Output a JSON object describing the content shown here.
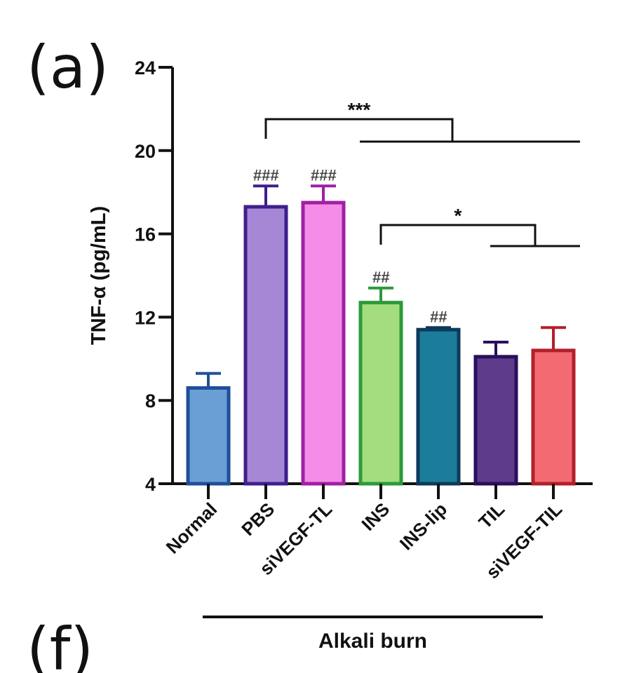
{
  "panel_labels": {
    "top": "(a)",
    "bottom": "(f)"
  },
  "chart_data": {
    "type": "bar",
    "title": "",
    "xlabel": "",
    "ylabel": "TNF-α (pg/mL)",
    "ylim": [
      4,
      24
    ],
    "yticks": [
      4,
      8,
      12,
      16,
      20,
      24
    ],
    "categories": [
      "Normal",
      "PBS",
      "siVEGF-TL",
      "INS",
      "INS-lip",
      "TIL",
      "siVEGF-TIL"
    ],
    "values": [
      8.6,
      17.3,
      17.5,
      12.7,
      11.4,
      10.1,
      10.4
    ],
    "errors": [
      0.7,
      1.0,
      0.8,
      0.7,
      0.1,
      0.7,
      1.1
    ],
    "significance_labels": [
      "",
      "###",
      "###",
      "##",
      "##",
      "",
      ""
    ],
    "fill_colors": [
      "#6a9fd6",
      "#a587d6",
      "#f58ce8",
      "#a3dd7f",
      "#1b7d99",
      "#5f3b8c",
      "#f26b73"
    ],
    "edge_colors": [
      "#1f4f99",
      "#3e1f8c",
      "#a11fa3",
      "#2d9a3a",
      "#0d3a5c",
      "#2a0f5c",
      "#b31f2a"
    ],
    "comparisons": [
      {
        "label": "***",
        "from": "PBS",
        "to_range": [
          "INS",
          "siVEGF-TIL"
        ]
      },
      {
        "label": "*",
        "from": "INS",
        "to_range": [
          "TIL",
          "siVEGF-TIL"
        ]
      }
    ],
    "group_label": "Alkali burn",
    "group_range": [
      "PBS",
      "siVEGF-TIL"
    ],
    "grid": false,
    "legend": "none"
  }
}
